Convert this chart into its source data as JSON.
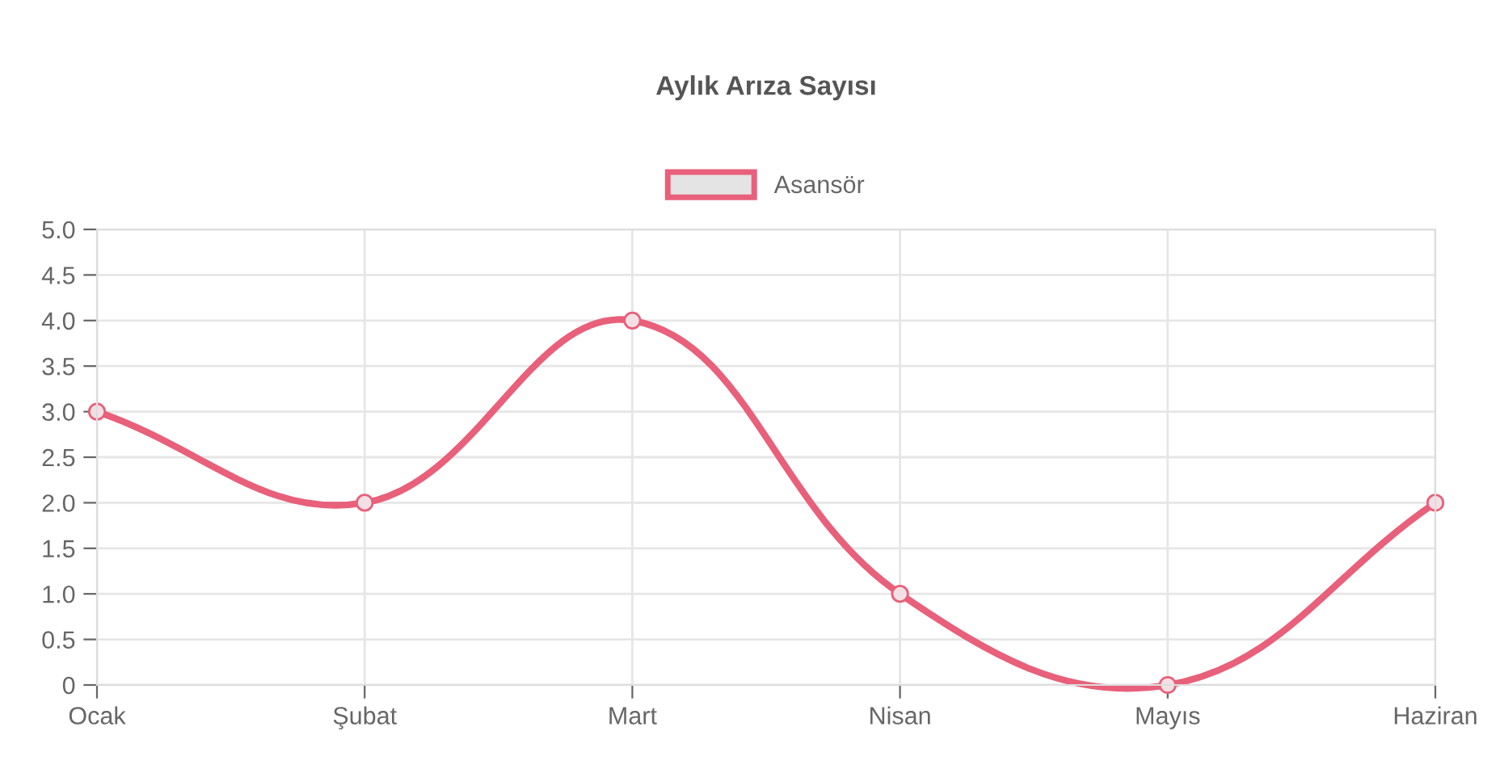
{
  "chart_data": {
    "type": "line",
    "title": "Aylık Arıza Sayısı",
    "categories": [
      "Ocak",
      "Şubat",
      "Mart",
      "Nisan",
      "Mayıs",
      "Haziran"
    ],
    "series": [
      {
        "name": "Asansör",
        "color": "#e8607a",
        "values": [
          3,
          2,
          4,
          1,
          0,
          2
        ]
      }
    ],
    "ylim": [
      0,
      5
    ],
    "yticks": [
      {
        "value": 0,
        "label": "0"
      },
      {
        "value": 0.5,
        "label": "0.5"
      },
      {
        "value": 1,
        "label": "1.0"
      },
      {
        "value": 1.5,
        "label": "1.5"
      },
      {
        "value": 2,
        "label": "2.0"
      },
      {
        "value": 2.5,
        "label": "2.5"
      },
      {
        "value": 3,
        "label": "3.0"
      },
      {
        "value": 3.5,
        "label": "3.5"
      },
      {
        "value": 4,
        "label": "4.0"
      },
      {
        "value": 4.5,
        "label": "4.5"
      },
      {
        "value": 5,
        "label": "5.0"
      }
    ],
    "grid": true,
    "legend": "top",
    "marker": "circle",
    "line_style": "solid"
  }
}
